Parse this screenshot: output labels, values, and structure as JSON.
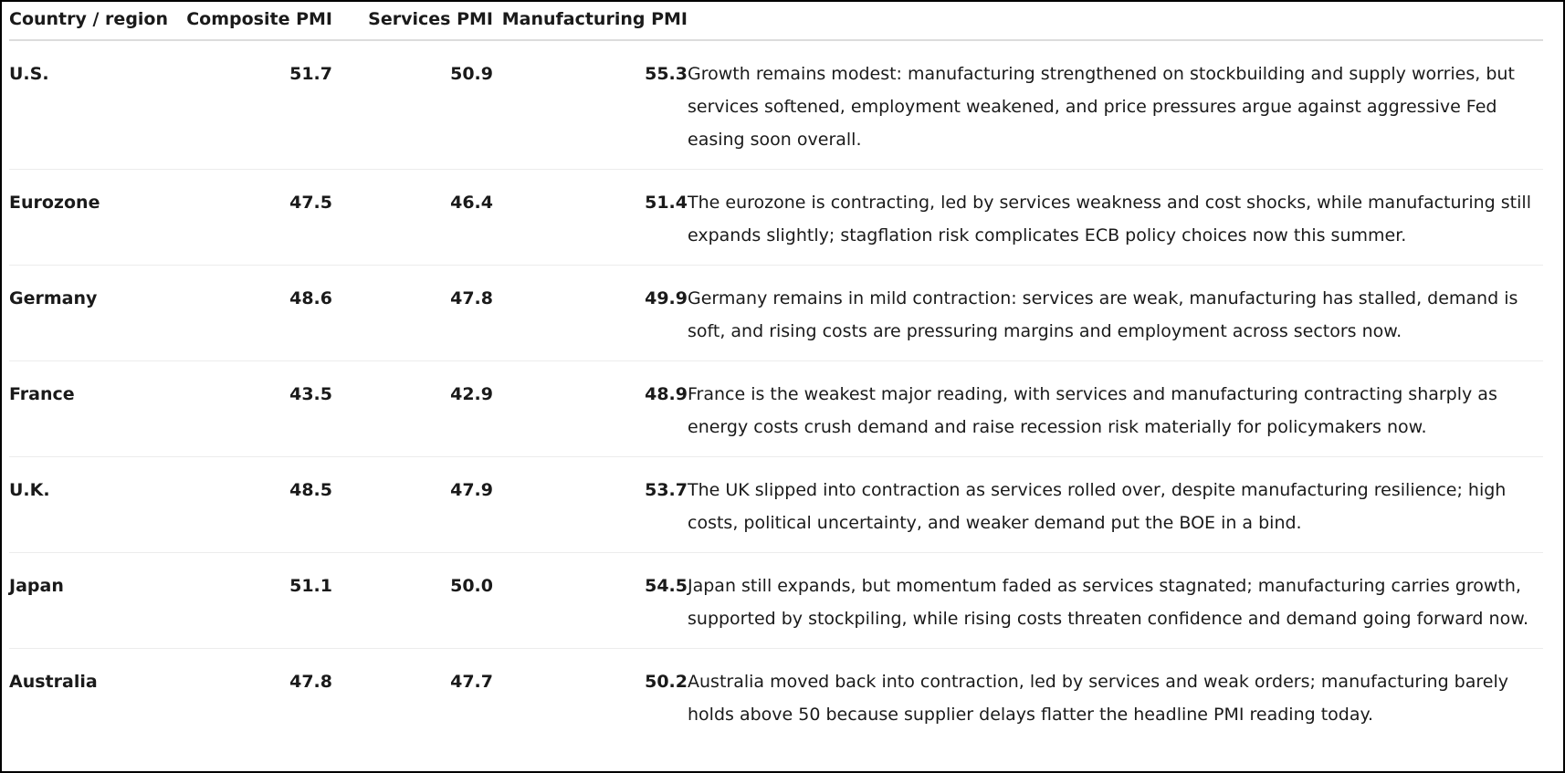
{
  "table": {
    "headers": {
      "country": "Country / region",
      "composite": "Composite PMI",
      "services": "Services PMI",
      "manufacturing": "Manufacturing PMI",
      "comment": ""
    },
    "rows": [
      {
        "country": "U.S.",
        "composite": "51.7",
        "services": "50.9",
        "manufacturing": "55.3",
        "comment": "Growth remains modest: manufacturing strengthened on stockbuilding and supply worries, but services softened, employment weakened, and price pressures argue against aggressive Fed easing soon overall."
      },
      {
        "country": "Eurozone",
        "composite": "47.5",
        "services": "46.4",
        "manufacturing": "51.4",
        "comment": "The eurozone is contracting, led by services weakness and cost shocks, while manufacturing still expands slightly; stagflation risk complicates ECB policy choices now this summer."
      },
      {
        "country": "Germany",
        "composite": "48.6",
        "services": "47.8",
        "manufacturing": "49.9",
        "comment": "Germany remains in mild contraction: services are weak, manufacturing has stalled, demand is soft, and rising costs are pressuring margins and employment across sectors now."
      },
      {
        "country": "France",
        "composite": "43.5",
        "services": "42.9",
        "manufacturing": "48.9",
        "comment": "France is the weakest major reading, with services and manufacturing contracting sharply as energy costs crush demand and raise recession risk materially for policymakers now."
      },
      {
        "country": "U.K.",
        "composite": "48.5",
        "services": "47.9",
        "manufacturing": "53.7",
        "comment": "The UK slipped into contraction as services rolled over, despite manufacturing resilience; high costs, political uncertainty, and weaker demand put the BOE in a bind."
      },
      {
        "country": "Japan",
        "composite": "51.1",
        "services": "50.0",
        "manufacturing": "54.5",
        "comment": "Japan still expands, but momentum faded as services stagnated; manufacturing carries growth, supported by stockpiling, while rising costs threaten confidence and demand going forward now."
      },
      {
        "country": "Australia",
        "composite": "47.8",
        "services": "47.7",
        "manufacturing": "50.2",
        "comment": "Australia moved back into contraction, led by services and weak orders; manufacturing barely holds above 50 because supplier delays flatter the headline PMI reading today."
      }
    ]
  }
}
